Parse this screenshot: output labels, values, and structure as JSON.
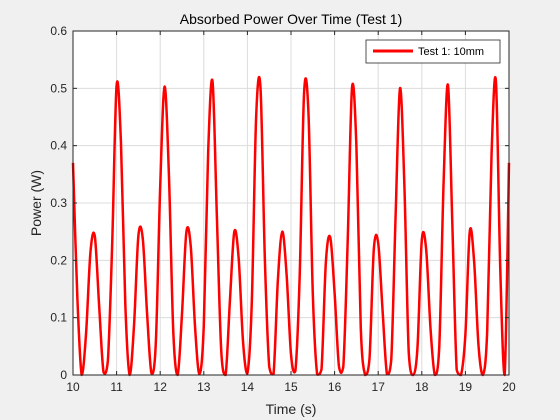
{
  "chart_data": {
    "type": "line",
    "title": "Absorbed Power Over Time (Test 1)",
    "xlabel": "Time (s)",
    "ylabel": "Power (W)",
    "xlim": [
      10,
      20
    ],
    "ylim": [
      0,
      0.6
    ],
    "xticks": [
      "10",
      "11",
      "12",
      "13",
      "14",
      "15",
      "16",
      "17",
      "18",
      "19",
      "20"
    ],
    "yticks": [
      "0",
      "0.1",
      "0.2",
      "0.3",
      "0.4",
      "0.5",
      "0.6"
    ],
    "grid": true,
    "legend": {
      "location": "top-right"
    },
    "series": [
      {
        "name": "Test 1: 10mm",
        "color": "#ff0000",
        "x": [
          10.0,
          10.1,
          10.2,
          10.3,
          10.4,
          10.5,
          10.6,
          10.7,
          10.8,
          10.9,
          11.0,
          11.1,
          11.2,
          11.3,
          11.4,
          11.5,
          11.6,
          11.7,
          11.8,
          11.9,
          12.0,
          12.1,
          12.2,
          12.3,
          12.4,
          12.5,
          12.6,
          12.7,
          12.8,
          12.9,
          13.0,
          13.1,
          13.2,
          13.3,
          13.4,
          13.5,
          13.6,
          13.7,
          13.8,
          13.9,
          14.0,
          14.1,
          14.2,
          14.3,
          14.4,
          14.5,
          14.6,
          14.7,
          14.8,
          14.9,
          15.0,
          15.1,
          15.2,
          15.3,
          15.4,
          15.5,
          15.6,
          15.7,
          15.8,
          15.9,
          16.0,
          16.1,
          16.2,
          16.3,
          16.4,
          16.5,
          16.6,
          16.7,
          16.8,
          16.9,
          17.0,
          17.1,
          17.2,
          17.3,
          17.4,
          17.5,
          17.6,
          17.7,
          17.8,
          17.9,
          18.0,
          18.1,
          18.2,
          18.3,
          18.4,
          18.5,
          18.6,
          18.7,
          18.8,
          18.9,
          19.0,
          19.1,
          19.2,
          19.3,
          19.4,
          19.5,
          19.6,
          19.7,
          19.8,
          19.9,
          20.0
        ],
        "y": [
          0.37,
          0.135,
          0.0,
          0.073,
          0.214,
          0.242,
          0.12,
          0.005,
          0.025,
          0.232,
          0.505,
          0.405,
          0.123,
          0.0,
          0.087,
          0.243,
          0.238,
          0.106,
          0.003,
          0.057,
          0.329,
          0.503,
          0.349,
          0.076,
          0.0,
          0.107,
          0.249,
          0.225,
          0.083,
          0.002,
          0.087,
          0.389,
          0.512,
          0.276,
          0.042,
          0.0,
          0.131,
          0.25,
          0.203,
          0.058,
          0.003,
          0.125,
          0.449,
          0.501,
          0.203,
          0.015,
          0.002,
          0.167,
          0.25,
          0.174,
          0.036,
          0.007,
          0.175,
          0.492,
          0.458,
          0.142,
          0.001,
          0.01,
          0.197,
          0.24,
          0.143,
          0.015,
          0.015,
          0.233,
          0.501,
          0.399,
          0.083,
          0.0,
          0.028,
          0.22,
          0.23,
          0.113,
          0.002,
          0.027,
          0.28,
          0.5,
          0.332,
          0.04,
          0.0,
          0.047,
          0.235,
          0.219,
          0.081,
          0.0,
          0.048,
          0.336,
          0.506,
          0.264,
          0.009,
          0.0,
          0.071,
          0.25,
          0.198,
          0.052,
          0.0,
          0.077,
          0.385,
          0.512,
          0.184,
          0.0,
          0.37
        ]
      }
    ]
  }
}
